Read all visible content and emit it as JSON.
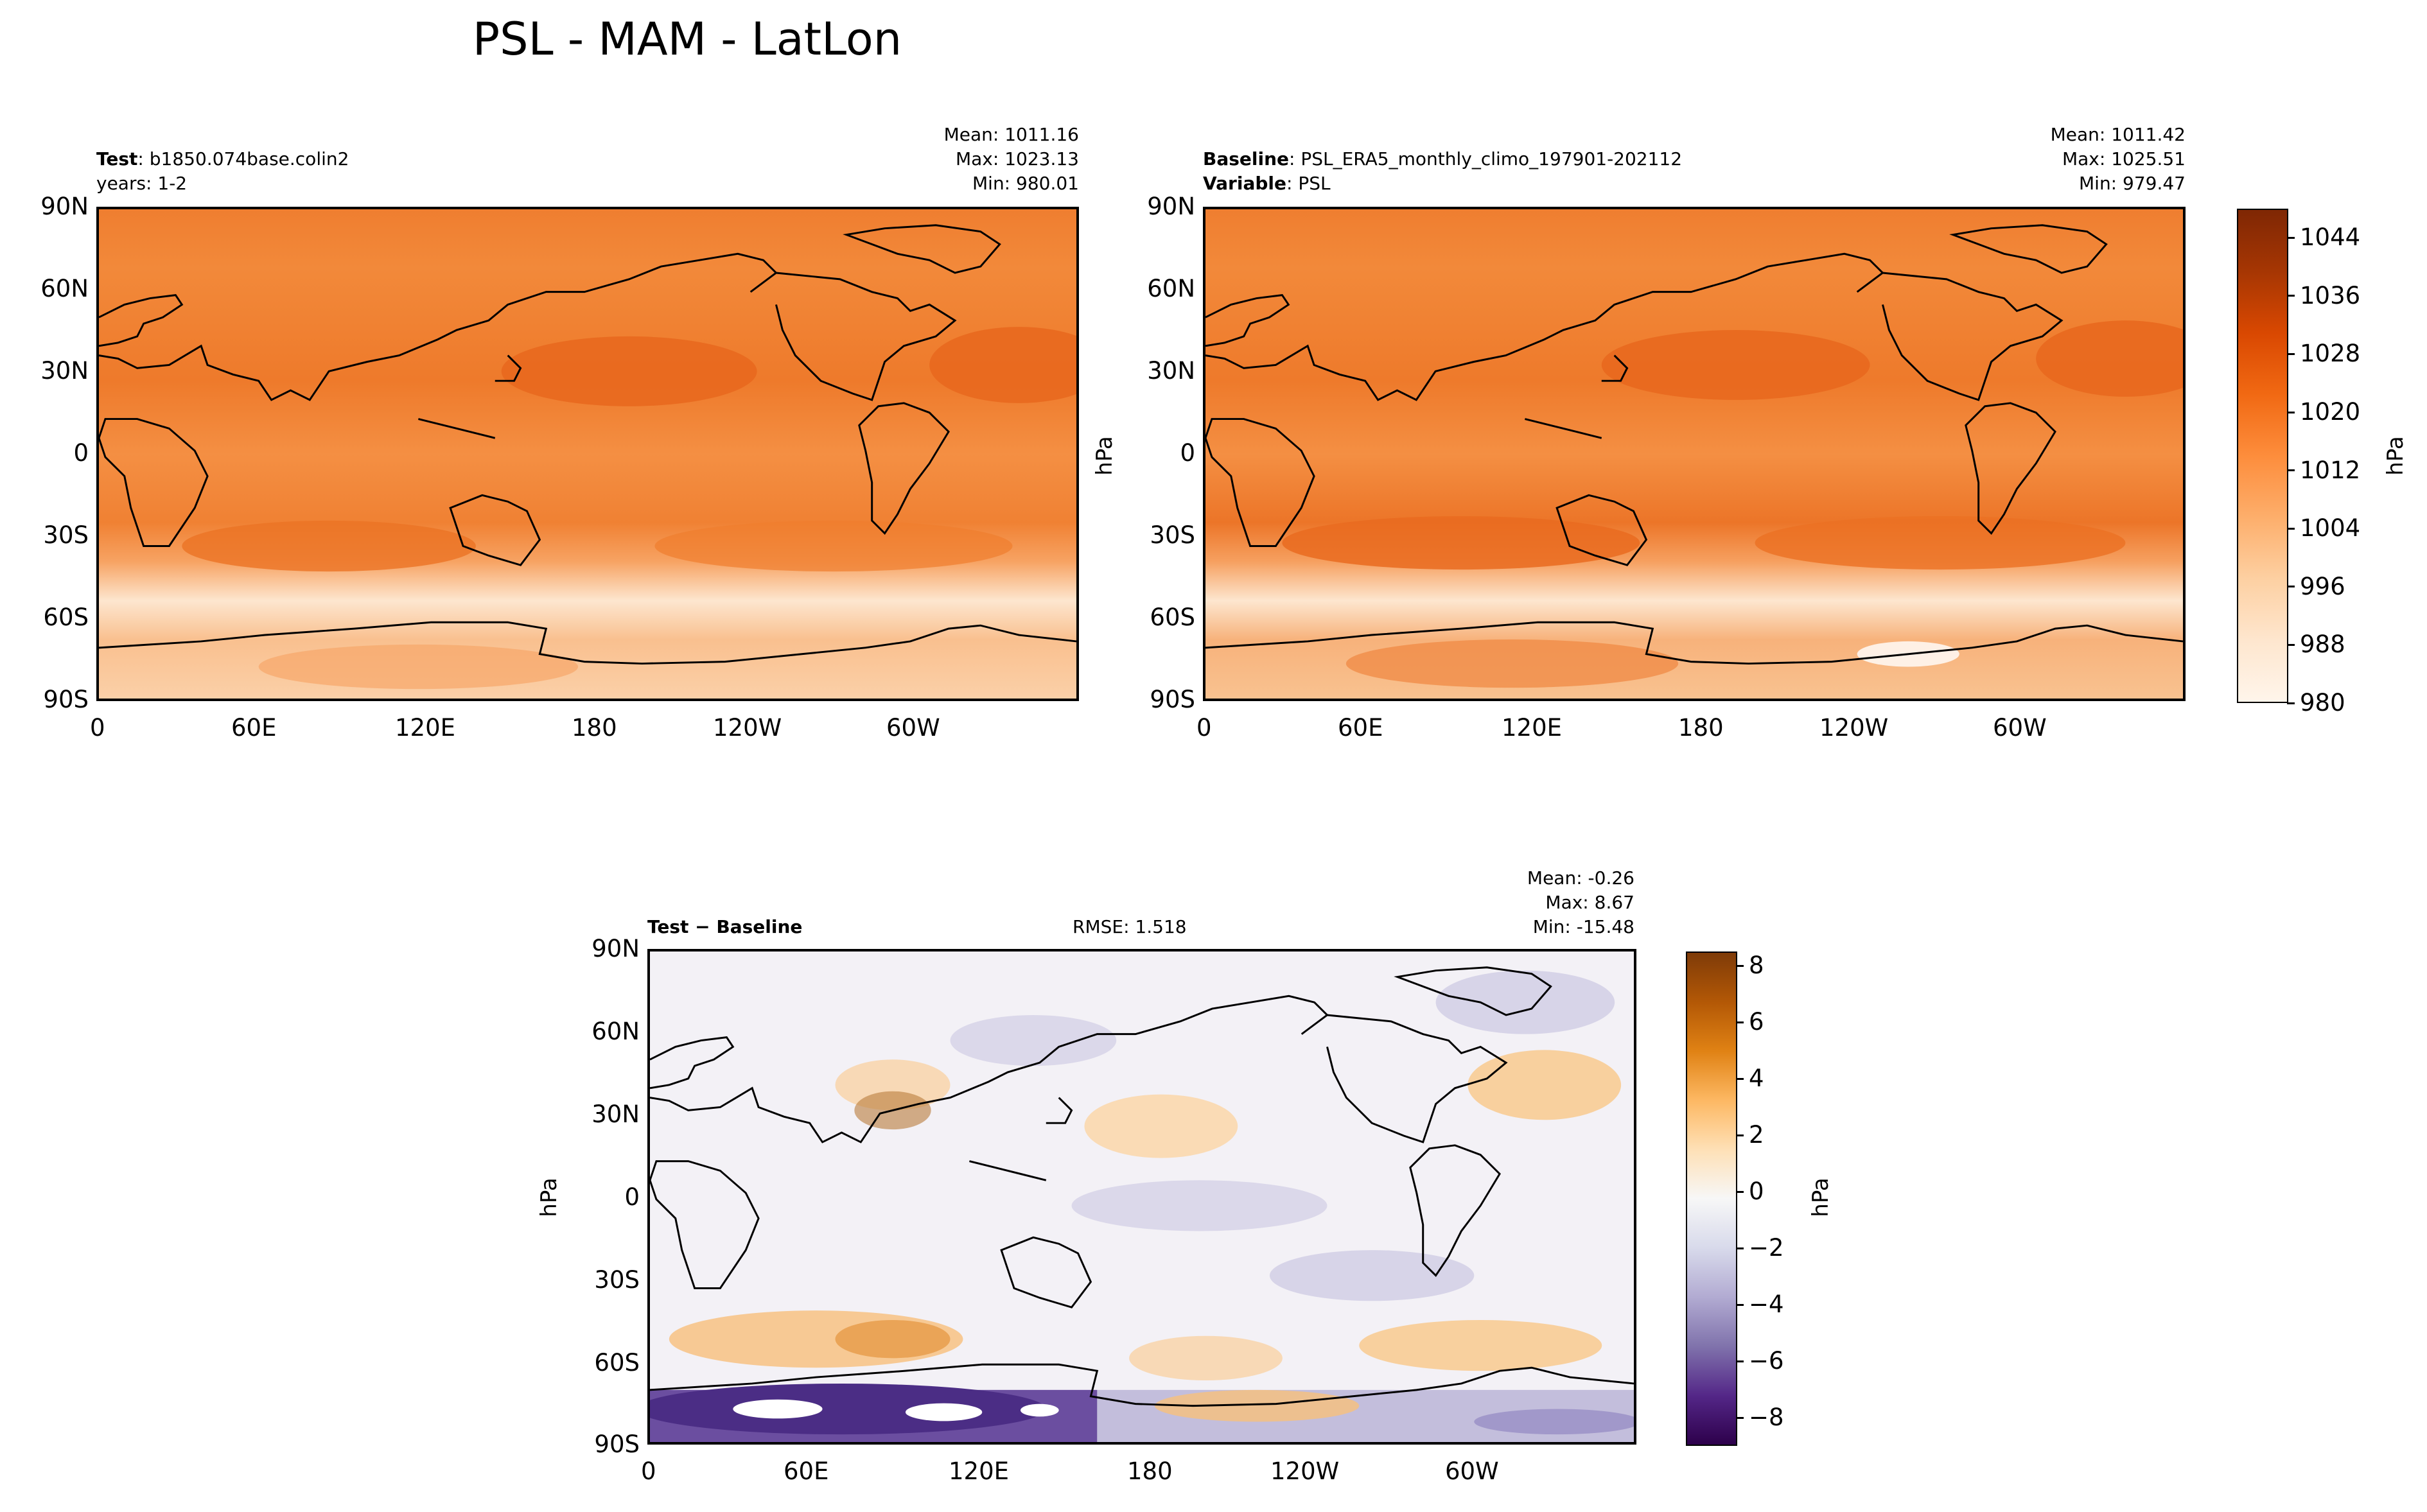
{
  "figure": {
    "title": "PSL - MAM - LatLon"
  },
  "colors": {
    "ocean_orange": "#f38b3f",
    "high_orange": "#e56a1f",
    "polar_light": "#fde7d2",
    "diff_neutral": "#f4f2f6",
    "diff_positive": "#f5b567",
    "diff_negative": "#7b68ac",
    "coast": "#000000"
  },
  "panels": {
    "test": {
      "label": "Test",
      "value": "b1850.074base.colin2",
      "years": "years: 1-2",
      "mean": "Mean: 1011.16",
      "max": "Max: 1023.13",
      "min": "Min: 980.01"
    },
    "baseline": {
      "label": "Baseline",
      "value": "PSL_ERA5_monthly_climo_197901-202112",
      "var_label": "Variable",
      "var_value": "PSL",
      "mean": "Mean: 1011.42",
      "max": "Max: 1025.51",
      "min": "Min: 979.47"
    },
    "diff": {
      "label": "Test − Baseline",
      "rmse": "RMSE: 1.518",
      "mean": "Mean: -0.26",
      "max": "Max:  8.67",
      "min": "Min: -15.48"
    }
  },
  "axes": {
    "lat_ticks": [
      "90N",
      "60N",
      "30N",
      "0",
      "30S",
      "60S",
      "90S"
    ],
    "lon_ticks": [
      "0",
      "60E",
      "120E",
      "180",
      "120W",
      "60W"
    ],
    "unit": "hPa"
  },
  "chart_data": [
    {
      "type": "heatmap",
      "panel": "test",
      "field": "PSL",
      "xlim": [
        0,
        360
      ],
      "ylim": [
        -90,
        90
      ],
      "color_range": [
        980,
        1048
      ],
      "stats": {
        "mean": 1011.16,
        "max": 1023.13,
        "min": 980.01
      }
    },
    {
      "type": "heatmap",
      "panel": "baseline",
      "field": "PSL",
      "xlim": [
        0,
        360
      ],
      "ylim": [
        -90,
        90
      ],
      "color_range": [
        980,
        1048
      ],
      "stats": {
        "mean": 1011.42,
        "max": 1025.51,
        "min": 979.47
      }
    },
    {
      "type": "heatmap",
      "panel": "test-minus-baseline",
      "field": "PSL difference",
      "xlim": [
        0,
        360
      ],
      "ylim": [
        -90,
        90
      ],
      "color_range": [
        -9,
        8.5
      ],
      "stats": {
        "mean": -0.26,
        "max": 8.67,
        "min": -15.48,
        "rmse": 1.518
      }
    }
  ],
  "colorbars": {
    "psl": {
      "ticks": [
        "1044",
        "1036",
        "1028",
        "1020",
        "1012",
        "1004",
        "996",
        "988",
        "980"
      ],
      "tick_values": [
        1044,
        1036,
        1028,
        1020,
        1012,
        1004,
        996,
        988,
        980
      ],
      "range": [
        980,
        1048
      ],
      "stops": [
        "#fff5eb",
        "#fee6ce",
        "#fdd0a2",
        "#fdae6b",
        "#fd8d3c",
        "#f16913",
        "#d94801",
        "#a63603",
        "#7f2704"
      ]
    },
    "diff": {
      "ticks": [
        "8",
        "6",
        "4",
        "2",
        "0",
        "−2",
        "−4",
        "−6",
        "−8"
      ],
      "tick_values": [
        8,
        6,
        4,
        2,
        0,
        -2,
        -4,
        -6,
        -8
      ],
      "range": [
        -9,
        8.5
      ],
      "stops": [
        "#2d004b",
        "#542788",
        "#8073ac",
        "#b2abd2",
        "#d8daeb",
        "#f7f7f7",
        "#fee0b6",
        "#fdb863",
        "#e08214",
        "#b35806",
        "#7f3b08"
      ]
    }
  }
}
